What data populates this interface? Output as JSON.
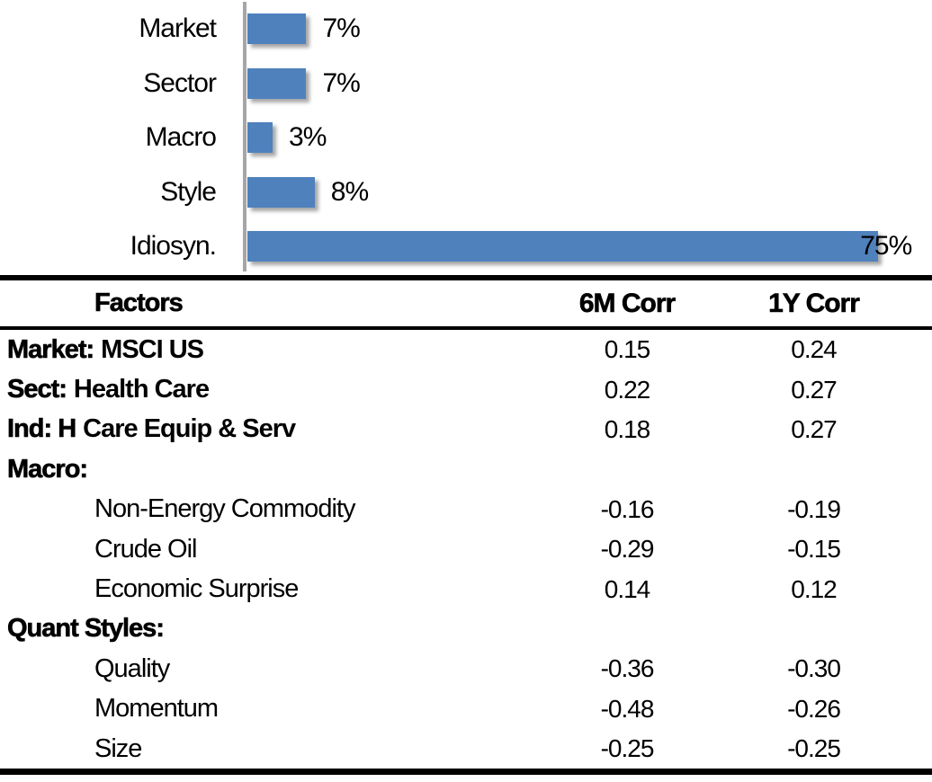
{
  "chart_data": {
    "type": "bar",
    "orientation": "horizontal",
    "title": "",
    "categories": [
      "Market",
      "Sector",
      "Macro",
      "Style",
      "Idiosyn."
    ],
    "values": [
      7,
      7,
      3,
      8,
      75
    ],
    "data_labels": [
      "7%",
      "7%",
      "3%",
      "8%",
      "75%"
    ],
    "label_positions": [
      "outside-end",
      "outside-end",
      "outside-end",
      "outside-end",
      "overlap-end"
    ],
    "xlim": [
      0,
      80
    ],
    "grid": false,
    "legend": false,
    "bar_color": "#4F81BD",
    "axis_line_color": "#A6A6A6"
  },
  "table": {
    "headers": {
      "factors": "Factors",
      "m6": "6M Corr",
      "y1": "1Y Corr"
    },
    "rows": [
      {
        "prefix": "Market:",
        "rest": "MSCI US",
        "style": "group",
        "indent": 0,
        "m6": "0.15",
        "y1": "0.24"
      },
      {
        "prefix": "Sect:",
        "rest": "Health Care",
        "style": "group",
        "indent": 0,
        "m6": "0.22",
        "y1": "0.27"
      },
      {
        "prefix": "Ind: H",
        "rest": "Care Equip & Serv",
        "style": "group",
        "indent": 0,
        "m6": "0.18",
        "y1": "0.27"
      },
      {
        "prefix": "Macro:",
        "rest": "",
        "style": "group",
        "indent": 0,
        "m6": "",
        "y1": ""
      },
      {
        "prefix": "",
        "rest": "Non-Energy Commodity",
        "style": "item",
        "indent": 1,
        "m6": "-0.16",
        "y1": "-0.19"
      },
      {
        "prefix": "",
        "rest": "Crude Oil",
        "style": "item",
        "indent": 1,
        "m6": "-0.29",
        "y1": "-0.15"
      },
      {
        "prefix": "",
        "rest": "Economic Surprise",
        "style": "item",
        "indent": 1,
        "m6": "0.14",
        "y1": "0.12"
      },
      {
        "prefix": "Quant Styles:",
        "rest": "",
        "style": "group",
        "indent": 0,
        "m6": "",
        "y1": ""
      },
      {
        "prefix": "",
        "rest": "Quality",
        "style": "item",
        "indent": 1,
        "m6": "-0.36",
        "y1": "-0.30"
      },
      {
        "prefix": "",
        "rest": "Momentum",
        "style": "item",
        "indent": 1,
        "m6": "-0.48",
        "y1": "-0.26"
      },
      {
        "prefix": "",
        "rest": "Size",
        "style": "item",
        "indent": 1,
        "m6": "-0.25",
        "y1": "-0.25"
      }
    ]
  }
}
